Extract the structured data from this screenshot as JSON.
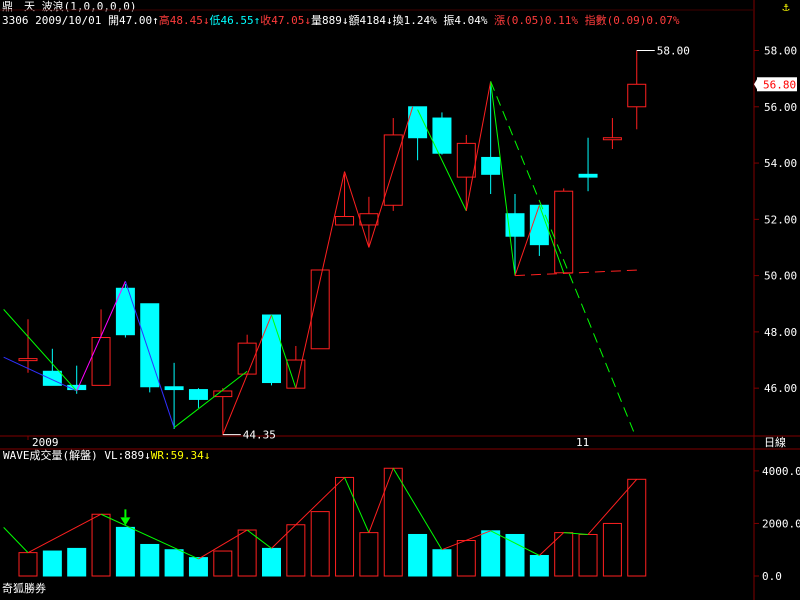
{
  "header": {
    "stock_name": "鼎　天",
    "indicator": "波浪(1,0,0,0,0)",
    "code": "3306",
    "date": "2009/10/01",
    "open_label": "開47.00",
    "high_label": "高48.45",
    "low_label": "低46.55",
    "close_label": "收47.05",
    "volume_label": "量889",
    "amount_label": "額4184",
    "turnover_label": "換1.24%",
    "amplitude_label": "振4.04%",
    "change_label": "漲(0.05)0.11%",
    "index_label": "指數(0.09)0.07%",
    "up_arrow": "↑",
    "down_arrow": "↓"
  },
  "sub_header": {
    "title": "WAVE成交量(解盤)",
    "vl_label": "VL:889",
    "wr_label": "WR:59.34",
    "down_arrow": "↓"
  },
  "x_axis": {
    "year_label": "2009",
    "month_label": "11",
    "unit_label": "日線"
  },
  "watermark": "奇狐勝券",
  "anchor_icon": "anchor-icon",
  "colors": {
    "background": "#000000",
    "up_candle": "#ff2020",
    "down_candle": "#00ffff",
    "wave_up": "#ff2020",
    "wave_down_green": "#00ff00",
    "wave_blue": "#3030ff",
    "wave_magenta": "#ff00ff",
    "grid": "#800000",
    "axis_text": "#ffffff"
  },
  "chart_data": [
    {
      "type": "candlestick",
      "y_axis_side": "right",
      "ylim": [
        44.3,
        58.8
      ],
      "y_ticks": [
        "58.00",
        "56.00",
        "54.00",
        "52.00",
        "50.00",
        "48.00",
        "46.00"
      ],
      "current_price_label": "56.80",
      "annotations": [
        {
          "text": "58.00",
          "candle": 25,
          "value": 58.0
        },
        {
          "text": "44.35",
          "candle": 8,
          "value": 44.35
        }
      ],
      "candles": [
        {
          "o": 47.0,
          "h": 48.45,
          "l": 46.55,
          "c": 47.05
        },
        {
          "o": 46.6,
          "h": 47.4,
          "l": 46.1,
          "c": 46.1
        },
        {
          "o": 46.1,
          "h": 46.8,
          "l": 45.8,
          "c": 45.95
        },
        {
          "o": 46.1,
          "h": 48.8,
          "l": 46.1,
          "c": 47.8
        },
        {
          "o": 49.55,
          "h": 49.7,
          "l": 47.8,
          "c": 47.9
        },
        {
          "o": 49.0,
          "h": 49.0,
          "l": 45.85,
          "c": 46.05
        },
        {
          "o": 46.05,
          "h": 46.9,
          "l": 44.55,
          "c": 45.95
        },
        {
          "o": 45.95,
          "h": 46.0,
          "l": 45.3,
          "c": 45.6
        },
        {
          "o": 45.7,
          "h": 46.0,
          "l": 44.35,
          "c": 45.9
        },
        {
          "o": 46.5,
          "h": 47.9,
          "l": 46.5,
          "c": 47.6
        },
        {
          "o": 48.6,
          "h": 48.6,
          "l": 46.1,
          "c": 46.2
        },
        {
          "o": 46.0,
          "h": 47.5,
          "l": 46.0,
          "c": 47.0
        },
        {
          "o": 47.4,
          "h": 50.2,
          "l": 47.4,
          "c": 50.2
        },
        {
          "o": 51.8,
          "h": 53.6,
          "l": 51.8,
          "c": 52.1
        },
        {
          "o": 51.8,
          "h": 52.8,
          "l": 51.0,
          "c": 52.2
        },
        {
          "o": 52.5,
          "h": 55.6,
          "l": 52.3,
          "c": 55.0
        },
        {
          "o": 56.0,
          "h": 56.0,
          "l": 54.1,
          "c": 54.9
        },
        {
          "o": 55.6,
          "h": 55.8,
          "l": 54.3,
          "c": 54.35
        },
        {
          "o": 53.5,
          "h": 55.0,
          "l": 52.3,
          "c": 54.7
        },
        {
          "o": 54.2,
          "h": 56.9,
          "l": 52.9,
          "c": 53.6
        },
        {
          "o": 52.2,
          "h": 52.9,
          "l": 50.0,
          "c": 51.4
        },
        {
          "o": 52.5,
          "h": 52.5,
          "l": 50.7,
          "c": 51.1
        },
        {
          "o": 50.1,
          "h": 53.1,
          "l": 50.1,
          "c": 53.0
        },
        {
          "o": 53.6,
          "h": 54.9,
          "l": 53.0,
          "c": 53.5
        },
        {
          "o": 54.9,
          "h": 55.6,
          "l": 54.5,
          "c": 54.9
        },
        {
          "o": 56.0,
          "h": 58.0,
          "l": 55.2,
          "c": 56.8
        }
      ],
      "wave_lines": [
        {
          "color": "blue",
          "points": [
            [
              -1,
              47.1
            ],
            [
              2,
              45.9
            ]
          ]
        },
        {
          "color": "green",
          "points": [
            [
              -1,
              48.8
            ],
            [
              2,
              45.9
            ]
          ]
        },
        {
          "color": "magenta",
          "points": [
            [
              2,
              45.9
            ],
            [
              4,
              49.8
            ]
          ]
        },
        {
          "color": "blue",
          "points": [
            [
              4,
              49.8
            ],
            [
              6,
              44.6
            ]
          ]
        },
        {
          "color": "green",
          "points": [
            [
              6,
              44.6
            ],
            [
              9,
              46.6
            ]
          ]
        },
        {
          "color": "red",
          "points": [
            [
              8,
              44.35
            ],
            [
              10,
              48.6
            ]
          ]
        },
        {
          "color": "green",
          "points": [
            [
              10,
              48.6
            ],
            [
              11,
              46.0
            ]
          ]
        },
        {
          "color": "red",
          "points": [
            [
              11,
              46.0
            ],
            [
              13,
              53.7
            ]
          ]
        },
        {
          "color": "red",
          "points": [
            [
              13,
              53.7
            ],
            [
              14,
              51.0
            ]
          ]
        },
        {
          "color": "red",
          "points": [
            [
              14,
              51.0
            ],
            [
              15.8,
              56.0
            ]
          ]
        },
        {
          "color": "green",
          "points": [
            [
              16,
              55.9
            ],
            [
              18,
              52.3
            ]
          ]
        },
        {
          "color": "red",
          "points": [
            [
              18,
              52.3
            ],
            [
              19,
              56.9
            ]
          ]
        },
        {
          "color": "green",
          "points": [
            [
              19,
              56.9
            ],
            [
              20,
              50.0
            ]
          ]
        },
        {
          "color": "red",
          "points": [
            [
              20,
              50.0
            ],
            [
              21,
              52.5
            ]
          ]
        },
        {
          "color": "green",
          "points": [
            [
              21,
              52.5
            ],
            [
              22,
              50.1
            ]
          ]
        }
      ],
      "dashed_lines": [
        {
          "color": "green",
          "points": [
            [
              19,
              56.9
            ],
            [
              24.9,
              44.4
            ]
          ]
        },
        {
          "color": "red",
          "points": [
            [
              20,
              50.0
            ],
            [
              25.1,
              50.2
            ]
          ]
        }
      ]
    },
    {
      "type": "bar",
      "title": "WAVE成交量(解盤)",
      "ylim": [
        0,
        4300
      ],
      "y_ticks": [
        "4000.0",
        "2000.0",
        "0.0"
      ],
      "values": [
        889,
        950,
        1050,
        2350,
        1850,
        1200,
        1000,
        700,
        950,
        1750,
        1050,
        1950,
        2450,
        3750,
        1650,
        4100,
        1580,
        1000,
        1350,
        1720,
        1580,
        780,
        1650,
        1580,
        2000,
        3680
      ],
      "directions": [
        "up",
        "down",
        "down",
        "up",
        "down",
        "down",
        "down",
        "down",
        "up",
        "up",
        "down",
        "up",
        "up",
        "up",
        "up",
        "up",
        "down",
        "down",
        "up",
        "down",
        "down",
        "down",
        "up",
        "up",
        "up",
        "up"
      ],
      "wave_lines": [
        {
          "color": "green",
          "points": [
            [
              -1,
              1850
            ],
            [
              0,
              889
            ]
          ]
        },
        {
          "color": "red",
          "points": [
            [
              0,
              889
            ],
            [
              3,
              2350
            ]
          ]
        },
        {
          "color": "green",
          "points": [
            [
              3,
              2350
            ],
            [
              7,
              650
            ]
          ]
        },
        {
          "color": "red",
          "points": [
            [
              7,
              650
            ],
            [
              9,
              1750
            ]
          ]
        },
        {
          "color": "green",
          "points": [
            [
              9,
              1750
            ],
            [
              10,
              1050
            ]
          ]
        },
        {
          "color": "red",
          "points": [
            [
              10,
              1050
            ],
            [
              13,
              3750
            ]
          ]
        },
        {
          "color": "green",
          "points": [
            [
              13,
              3750
            ],
            [
              14,
              1650
            ]
          ]
        },
        {
          "color": "red",
          "points": [
            [
              14,
              1650
            ],
            [
              15,
              4100
            ]
          ]
        },
        {
          "color": "green",
          "points": [
            [
              15,
              4100
            ],
            [
              17,
              1000
            ]
          ]
        },
        {
          "color": "red",
          "points": [
            [
              17,
              1000
            ],
            [
              19,
              1720
            ]
          ]
        },
        {
          "color": "green",
          "points": [
            [
              19,
              1720
            ],
            [
              21,
              780
            ]
          ]
        },
        {
          "color": "red",
          "points": [
            [
              21,
              780
            ],
            [
              22,
              1650
            ]
          ]
        },
        {
          "color": "green",
          "points": [
            [
              22,
              1650
            ],
            [
              23,
              1580
            ]
          ]
        },
        {
          "color": "red",
          "points": [
            [
              23,
              1580
            ],
            [
              25,
              3680
            ]
          ]
        }
      ],
      "marker_candle": 4
    }
  ]
}
